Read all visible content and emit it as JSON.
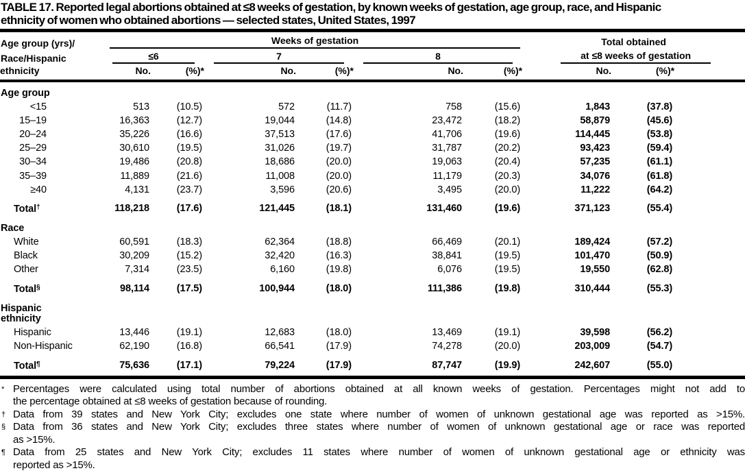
{
  "page": {
    "ink": "#000000",
    "paper": "#ffffff"
  },
  "title": {
    "line1": "TABLE 17. Reported legal abortions obtained at ≤8 weeks of gestation, by known weeks of gestation, age group, race, and Hispanic",
    "line2": "ethnicity of women who obtained abortions — selected states, United States, 1997"
  },
  "table": {
    "stub_header": [
      "Age group (yrs)/",
      "Race/Hispanic",
      "ethnicity"
    ],
    "spanners": {
      "weeks": "Weeks of gestation",
      "total_line1": "Total obtained",
      "total_line2": "at ≤8 weeks of gestation"
    },
    "group_headers": [
      "≤6",
      "7",
      "8"
    ],
    "col_headers": {
      "no": "No.",
      "pct": "(%)*"
    },
    "sections": [
      {
        "label_lines": [
          "Age group"
        ],
        "label_align": "right",
        "rows": [
          {
            "label": "<15",
            "values": [
              "513",
              "(10.5)",
              "572",
              "(11.7)",
              "758",
              "(15.6)",
              "1,843",
              "(37.8)"
            ]
          },
          {
            "label": "15–19",
            "values": [
              "16,363",
              "(12.7)",
              "19,044",
              "(14.8)",
              "23,472",
              "(18.2)",
              "58,879",
              "(45.6)"
            ]
          },
          {
            "label": "20–24",
            "values": [
              "35,226",
              "(16.6)",
              "37,513",
              "(17.6)",
              "41,706",
              "(19.6)",
              "114,445",
              "(53.8)"
            ]
          },
          {
            "label": "25–29",
            "values": [
              "30,610",
              "(19.5)",
              "31,026",
              "(19.7)",
              "31,787",
              "(20.2)",
              "93,423",
              "(59.4)"
            ]
          },
          {
            "label": "30–34",
            "values": [
              "19,486",
              "(20.8)",
              "18,686",
              "(20.0)",
              "19,063",
              "(20.4)",
              "57,235",
              "(61.1)"
            ]
          },
          {
            "label": "35–39",
            "values": [
              "11,889",
              "(21.6)",
              "11,008",
              "(20.0)",
              "11,179",
              "(20.3)",
              "34,076",
              "(61.8)"
            ]
          },
          {
            "label": "≥40",
            "values": [
              "4,131",
              "(23.7)",
              "3,596",
              "(20.6)",
              "3,495",
              "(20.0)",
              "11,222",
              "(64.2)"
            ]
          }
        ],
        "total": {
          "label": "Total",
          "marker": "†",
          "values": [
            "118,218",
            "(17.6)",
            "121,445",
            "(18.1)",
            "131,460",
            "(19.6)",
            "371,123",
            "(55.4)"
          ]
        }
      },
      {
        "label_lines": [
          "Race"
        ],
        "label_align": "left",
        "rows": [
          {
            "label": "White",
            "values": [
              "60,591",
              "(18.3)",
              "62,364",
              "(18.8)",
              "66,469",
              "(20.1)",
              "189,424",
              "(57.2)"
            ]
          },
          {
            "label": "Black",
            "values": [
              "30,209",
              "(15.2)",
              "32,420",
              "(16.3)",
              "38,841",
              "(19.5)",
              "101,470",
              "(50.9)"
            ]
          },
          {
            "label": "Other",
            "values": [
              "7,314",
              "(23.5)",
              "6,160",
              "(19.8)",
              "6,076",
              "(19.5)",
              "19,550",
              "(62.8)"
            ]
          }
        ],
        "total": {
          "label": "Total",
          "marker": "§",
          "values": [
            "98,114",
            "(17.5)",
            "100,944",
            "(18.0)",
            "111,386",
            "(19.8)",
            "310,444",
            "(55.3)"
          ]
        }
      },
      {
        "label_lines": [
          "Hispanic",
          "ethnicity"
        ],
        "label_align": "left",
        "rows": [
          {
            "label": "Hispanic",
            "values": [
              "13,446",
              "(19.1)",
              "12,683",
              "(18.0)",
              "13,469",
              "(19.1)",
              "39,598",
              "(56.2)"
            ]
          },
          {
            "label": "Non-Hispanic",
            "values": [
              "62,190",
              "(16.8)",
              "66,541",
              "(17.9)",
              "74,278",
              "(20.0)",
              "203,009",
              "(54.7)"
            ]
          }
        ],
        "total": {
          "label": "Total",
          "marker": "¶",
          "values": [
            "75,636",
            "(17.1)",
            "79,224",
            "(17.9)",
            "87,747",
            "(19.9)",
            "242,607",
            "(55.0)"
          ]
        }
      }
    ]
  },
  "footnotes": [
    {
      "marker": "*",
      "lines": [
        "Percentages were calculated using total number of abortions obtained at all known weeks of gestation. Percentages might not add to",
        "the percentage obtained at ≤8 weeks of gestation because of rounding."
      ]
    },
    {
      "marker": "†",
      "lines": [
        "Data from 39 states and New York City; excludes one state where number of women of unknown gestational age was reported as >15%."
      ]
    },
    {
      "marker": "§",
      "lines": [
        "Data from 36 states and New York City; excludes three states where number of women of unknown gestational age or race was reported",
        "as >15%."
      ]
    },
    {
      "marker": "¶",
      "lines": [
        "Data from 25 states and New York City; excludes 11 states where number of women of unknown gestational age or ethnicity was",
        "reported as >15%."
      ]
    }
  ]
}
